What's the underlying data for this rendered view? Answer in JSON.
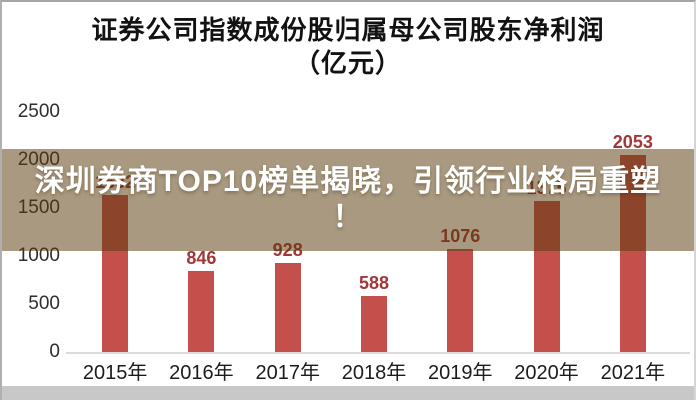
{
  "page": {
    "title_line1": "证券公司指数成份股归属母公司股东净利润",
    "title_line2": "（亿元）"
  },
  "banner": {
    "headline": "深圳券商TOP10榜单揭晓，引领行业格局重塑！",
    "lines": [
      "深圳券商TOP10榜单揭晓，引领行业格局重塑",
      "！"
    ],
    "background": "rgba(88,60,12,0.52)",
    "text_color": "#ffffff"
  },
  "chart_data": {
    "type": "bar",
    "title": "证券公司指数成份股归属母公司股东净利润（亿元）",
    "categories": [
      "2015年",
      "2016年",
      "2017年",
      "2018年",
      "2019年",
      "2020年",
      "2021年"
    ],
    "values": [
      1632,
      846,
      928,
      588,
      1076,
      1575,
      2053
    ],
    "value_labels": [
      "1632",
      "846",
      "928",
      "588",
      "1076",
      "1575",
      "2053"
    ],
    "labels_obscured_by_banner": [
      "2015年",
      "2020年"
    ],
    "yticks": [
      0,
      500,
      1000,
      1500,
      2000,
      2500
    ],
    "ylim": [
      0,
      2500
    ],
    "xlabel": "",
    "ylabel": "",
    "grid": false,
    "legend": null,
    "bar_color": "#c4504b",
    "value_label_color": "#a23639",
    "axis_tick_color": "#2e2e2e",
    "x_label_color": "#1c1c1c"
  }
}
